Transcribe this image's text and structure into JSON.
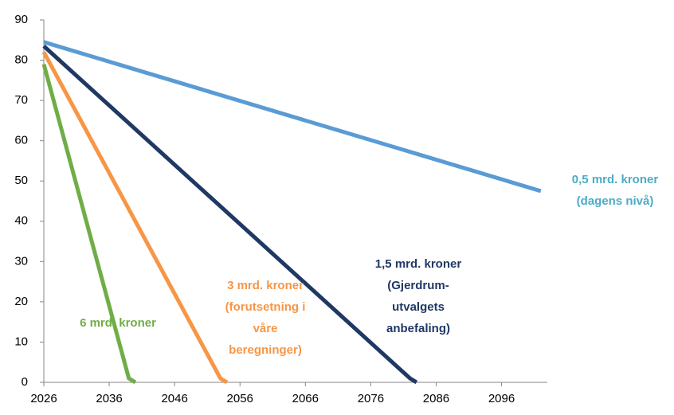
{
  "chart_data": {
    "type": "line",
    "xlim": [
      2026,
      2103
    ],
    "xticks": [
      2026,
      2036,
      2046,
      2056,
      2066,
      2076,
      2086,
      2096
    ],
    "ylim": [
      0,
      90
    ],
    "yticks": [
      0,
      10,
      20,
      30,
      40,
      50,
      60,
      70,
      80,
      90
    ],
    "series": [
      {
        "label": [
          "0,5 mrd. kroner",
          "(dagens nivå)"
        ],
        "color": "#5b9bd5",
        "label_color": "#4bacc6",
        "x": [
          2026,
          2102
        ],
        "values": [
          84.5,
          47.5
        ]
      },
      {
        "label": [
          "1,5 mrd. kroner",
          "(Gjerdrum-",
          "utvalgets",
          "anbefaling)"
        ],
        "color": "#1f3864",
        "label_color": "#1f3864",
        "x": [
          2026,
          2082,
          2083
        ],
        "values": [
          83.5,
          1,
          0
        ]
      },
      {
        "label": [
          "3 mrd. kroner",
          "(forutsetning i",
          "våre",
          "beregninger)"
        ],
        "color": "#f79646",
        "label_color": "#f79646",
        "x": [
          2026,
          2053,
          2054
        ],
        "values": [
          82,
          1,
          0
        ]
      },
      {
        "label": [
          "6 mrd. kroner"
        ],
        "color": "#70ad47",
        "label_color": "#70ad47",
        "x": [
          2026,
          2039,
          2040
        ],
        "values": [
          79,
          1,
          0
        ]
      }
    ]
  }
}
